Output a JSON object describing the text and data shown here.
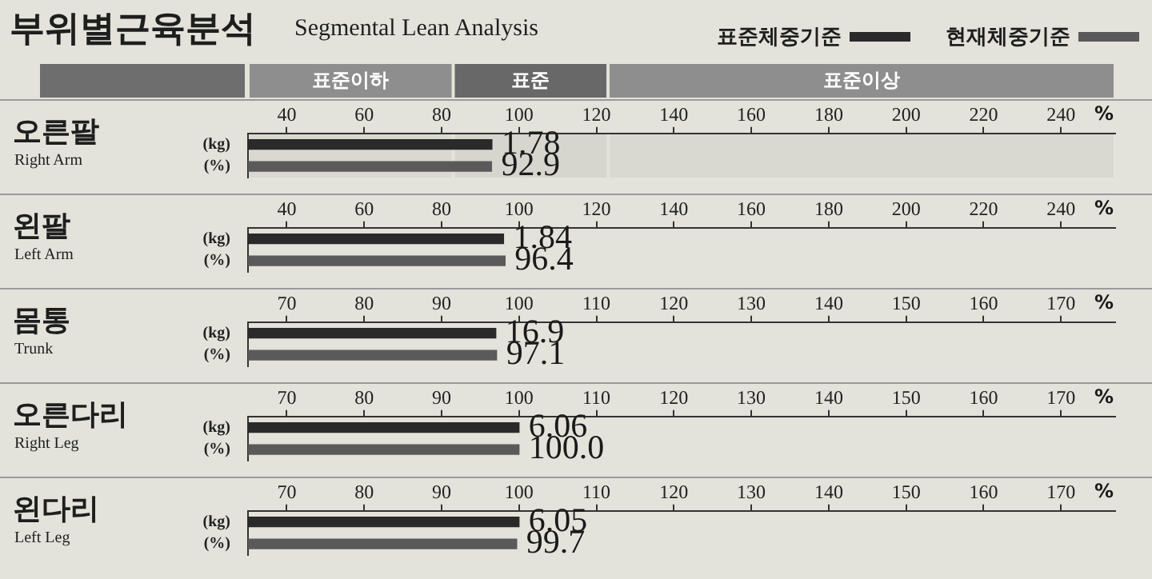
{
  "chart_data": [
    {
      "type": "bar",
      "orientation": "horizontal",
      "title": "오른팔",
      "xlabel": "%",
      "legend": "top right",
      "annotations": [
        "부위별근육분석",
        "Segmental Lean Analysis",
        "Right Arm",
        {
          "text": "1.78",
          "x": 93,
          "y": "(kg)"
        }
      ],
      "bands": [
        {
          "axis": "x",
          "from": 30,
          "to": 83,
          "label": "표준이하",
          "color": "#8e8e8e"
        },
        {
          "axis": "x",
          "from": 83,
          "to": 123,
          "label": "표준",
          "color": "#686868"
        },
        {
          "axis": "x",
          "from": 123,
          "to": 254,
          "label": "표준이상",
          "color": "#8e8e8e"
        }
      ],
      "categories": [
        "(kg)",
        "(%)"
      ],
      "series": [
        {
          "name": "표준체중기준",
          "color": "#2a2a2a",
          "values": [
            93,
            null
          ]
        },
        {
          "name": "현재체중기준",
          "color": "#5a5a5a",
          "values": [
            null,
            92.9
          ],
          "value_labels": [
            null,
            "92.9"
          ]
        }
      ],
      "xlim": [
        30,
        254
      ],
      "xticks": [
        40,
        60,
        80,
        100,
        120,
        140,
        160,
        180,
        200,
        220,
        240
      ]
    },
    {
      "type": "bar",
      "orientation": "horizontal",
      "title": "왼팔",
      "xlabel": "%",
      "categories": [
        "(kg)",
        "(%)"
      ],
      "annotations": [
        "Left Arm",
        {
          "text": "1.84",
          "x": 96,
          "y": "(kg)"
        }
      ],
      "series": [
        {
          "color": "#2a2a2a",
          "values": [
            96,
            null
          ]
        },
        {
          "color": "#5a5a5a",
          "values": [
            null,
            96.4
          ],
          "value_labels": [
            null,
            "96.4"
          ]
        }
      ],
      "xlim": [
        30,
        254
      ],
      "xticks": [
        40,
        60,
        80,
        100,
        120,
        140,
        160,
        180,
        200,
        220,
        240
      ]
    },
    {
      "type": "bar",
      "orientation": "horizontal",
      "title": "몸통",
      "xlabel": "%",
      "categories": [
        "(kg)",
        "(%)"
      ],
      "annotations": [
        "Trunk",
        {
          "text": "16.9",
          "x": 97,
          "y": "(kg)"
        }
      ],
      "series": [
        {
          "color": "#2a2a2a",
          "values": [
            97,
            null
          ]
        },
        {
          "color": "#5a5a5a",
          "values": [
            null,
            97.1
          ],
          "value_labels": [
            null,
            "97.1"
          ]
        }
      ],
      "xlim": [
        65,
        177
      ],
      "xticks": [
        70,
        80,
        90,
        100,
        110,
        120,
        130,
        140,
        150,
        160,
        170
      ]
    },
    {
      "type": "bar",
      "orientation": "horizontal",
      "title": "오른다리",
      "xlabel": "%",
      "categories": [
        "(kg)",
        "(%)"
      ],
      "annotations": [
        "Right Leg",
        {
          "text": "6.06",
          "x": 100,
          "y": "(kg)"
        }
      ],
      "series": [
        {
          "color": "#2a2a2a",
          "values": [
            100,
            null
          ]
        },
        {
          "color": "#5a5a5a",
          "values": [
            null,
            100.0
          ],
          "value_labels": [
            null,
            "100.0"
          ]
        }
      ],
      "xlim": [
        65,
        177
      ],
      "xticks": [
        70,
        80,
        90,
        100,
        110,
        120,
        130,
        140,
        150,
        160,
        170
      ]
    },
    {
      "type": "bar",
      "orientation": "horizontal",
      "title": "왼다리",
      "xlabel": "%",
      "categories": [
        "(kg)",
        "(%)"
      ],
      "annotations": [
        "Left Leg",
        {
          "text": "6.05",
          "x": 100,
          "y": "(kg)"
        }
      ],
      "series": [
        {
          "color": "#2a2a2a",
          "values": [
            100,
            null
          ]
        },
        {
          "color": "#5a5a5a",
          "values": [
            null,
            99.7
          ],
          "value_labels": [
            null,
            "99.7"
          ]
        }
      ],
      "xlim": [
        65,
        177
      ],
      "xticks": [
        70,
        80,
        90,
        100,
        110,
        120,
        130,
        140,
        150,
        160,
        170
      ]
    }
  ]
}
